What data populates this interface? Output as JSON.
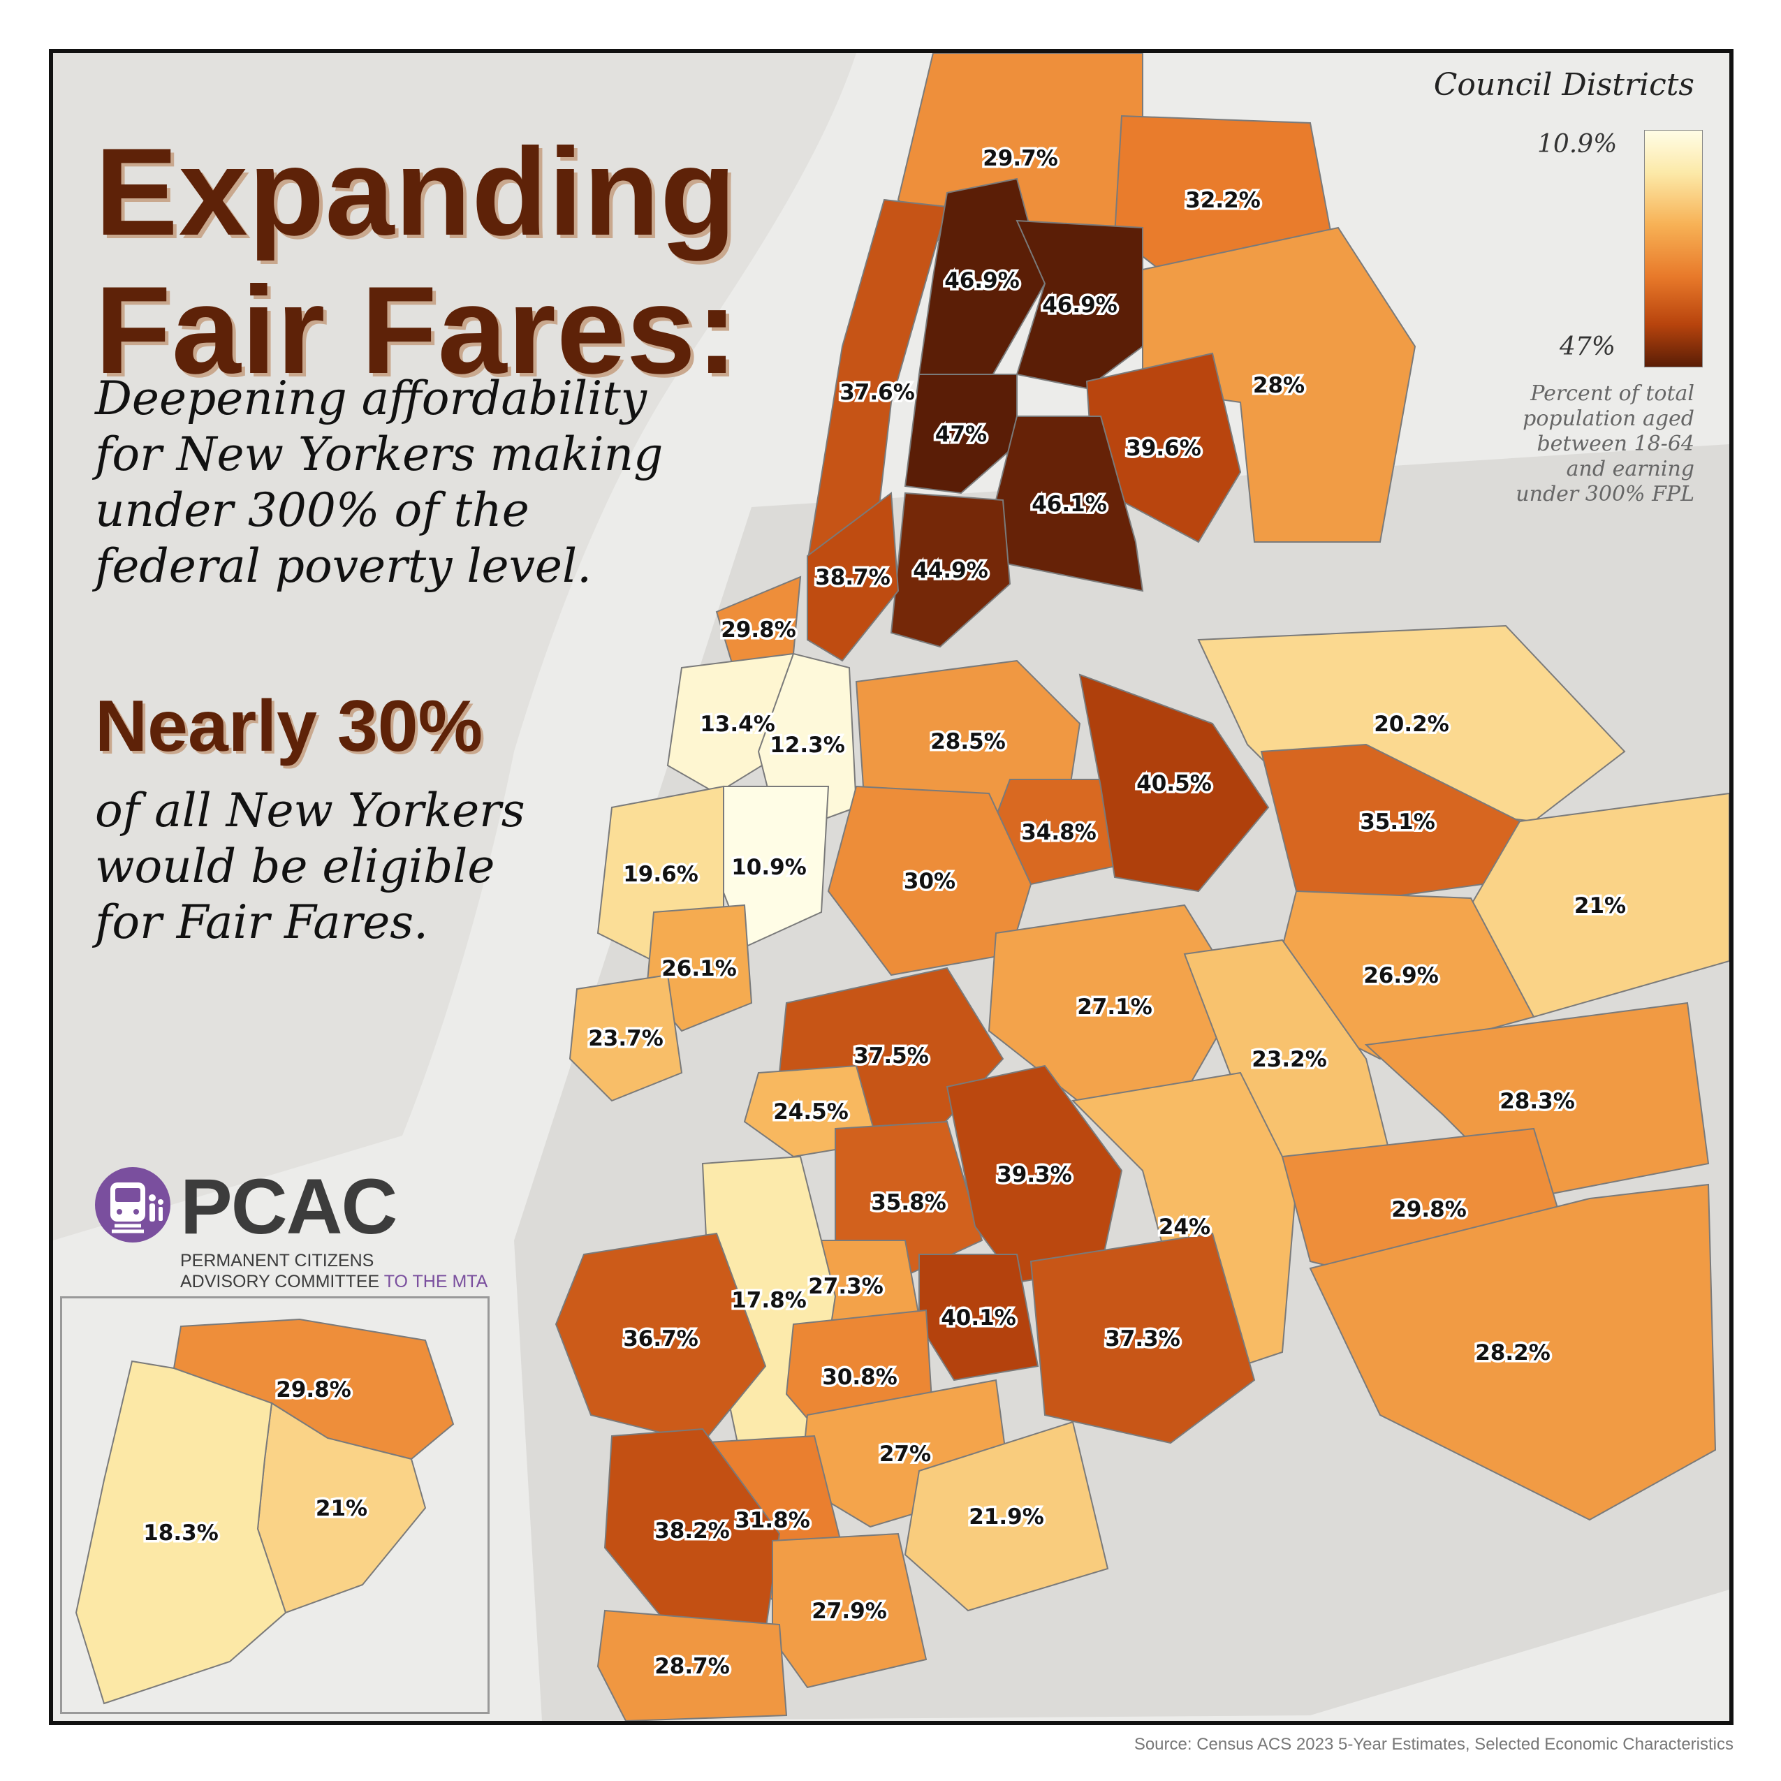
{
  "title": {
    "line1": "Expanding",
    "line2": "Fair Fares:"
  },
  "subtitle": [
    "Deepening affordability",
    "for New Yorkers making",
    "under 300% of the",
    "federal poverty level."
  ],
  "stat": {
    "headline": "Nearly 30%",
    "description": [
      "of all New Yorkers",
      "would be eligible",
      "for Fair Fares."
    ]
  },
  "legend": {
    "title": "Council Districts",
    "min_label": "10.9%",
    "max_label": "47%",
    "note": [
      "Percent of total",
      "population aged",
      "between 18-64",
      "and earning",
      "under 300% FPL"
    ],
    "colors": [
      "#fffde6",
      "#fce9a8",
      "#f7b155",
      "#e8792a",
      "#b8440d",
      "#5a1d06"
    ]
  },
  "logo": {
    "name": "PCAC",
    "line1": "PERMANENT CITIZENS",
    "line2": "ADVISORY COMMITTEE",
    "line2_accent": "TO THE MTA",
    "icon": "subway-train-icon",
    "color": "#7a4f9e"
  },
  "source": "Source: Census ACS 2023 5-Year Estimates, Selected Economic Characteristics",
  "districts": [
    {
      "label": "29.7%",
      "value": 29.7
    },
    {
      "label": "32.2%",
      "value": 32.2
    },
    {
      "label": "37.6%",
      "value": 37.6
    },
    {
      "label": "46.9%",
      "value": 46.9
    },
    {
      "label": "46.9%",
      "value": 46.9
    },
    {
      "label": "28%",
      "value": 28.0
    },
    {
      "label": "47%",
      "value": 47.0
    },
    {
      "label": "39.6%",
      "value": 39.6
    },
    {
      "label": "46.1%",
      "value": 46.1
    },
    {
      "label": "38.7%",
      "value": 38.7
    },
    {
      "label": "44.9%",
      "value": 44.9
    },
    {
      "label": "29.8%",
      "value": 29.8
    },
    {
      "label": "13.4%",
      "value": 13.4
    },
    {
      "label": "12.3%",
      "value": 12.3
    },
    {
      "label": "28.5%",
      "value": 28.5
    },
    {
      "label": "20.2%",
      "value": 20.2
    },
    {
      "label": "10.9%",
      "value": 10.9
    },
    {
      "label": "19.6%",
      "value": 19.6
    },
    {
      "label": "34.8%",
      "value": 34.8
    },
    {
      "label": "40.5%",
      "value": 40.5
    },
    {
      "label": "35.1%",
      "value": 35.1
    },
    {
      "label": "30%",
      "value": 30.0
    },
    {
      "label": "21%",
      "value": 21.0
    },
    {
      "label": "26.1%",
      "value": 26.1
    },
    {
      "label": "26.9%",
      "value": 26.9
    },
    {
      "label": "27.1%",
      "value": 27.1
    },
    {
      "label": "23.7%",
      "value": 23.7
    },
    {
      "label": "37.5%",
      "value": 37.5
    },
    {
      "label": "24.5%",
      "value": 24.5
    },
    {
      "label": "23.2%",
      "value": 23.2
    },
    {
      "label": "28.3%",
      "value": 28.3
    },
    {
      "label": "35.8%",
      "value": 35.8
    },
    {
      "label": "24%",
      "value": 24.0
    },
    {
      "label": "29.8%",
      "value": 29.8
    },
    {
      "label": "39.3%",
      "value": 39.3
    },
    {
      "label": "40.1%",
      "value": 40.1
    },
    {
      "label": "27.3%",
      "value": 27.3
    },
    {
      "label": "17.8%",
      "value": 17.8
    },
    {
      "label": "37.3%",
      "value": 37.3
    },
    {
      "label": "36.7%",
      "value": 36.7
    },
    {
      "label": "30.8%",
      "value": 30.8
    },
    {
      "label": "28.2%",
      "value": 28.2
    },
    {
      "label": "27%",
      "value": 27.0
    },
    {
      "label": "31.8%",
      "value": 31.8
    },
    {
      "label": "21.9%",
      "value": 21.9
    },
    {
      "label": "38.2%",
      "value": 38.2
    },
    {
      "label": "27.9%",
      "value": 27.9
    },
    {
      "label": "28.7%",
      "value": 28.7
    }
  ],
  "inset_districts": [
    {
      "label": "29.8%",
      "value": 29.8
    },
    {
      "label": "21%",
      "value": 21.0
    },
    {
      "label": "18.3%",
      "value": 18.3
    }
  ]
}
